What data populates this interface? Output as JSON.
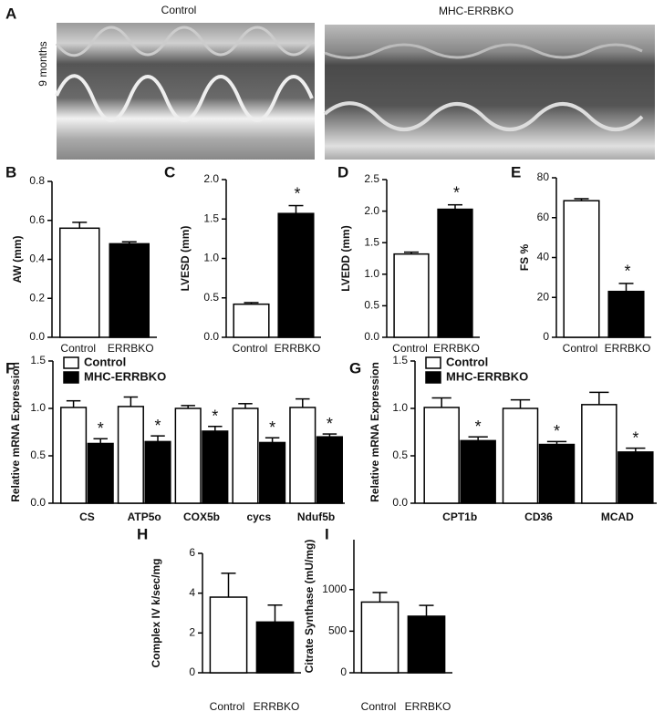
{
  "panel_a": {
    "label": "A",
    "ylabel": "9 months",
    "images": [
      {
        "title": "Control"
      },
      {
        "title": "MHC-ERRBKO"
      }
    ]
  },
  "chart_data": [
    {
      "type": "bar",
      "label": "B",
      "ylabel": "AW (mm)",
      "categories": [
        "Control",
        "ERRBKO"
      ],
      "values": [
        0.56,
        0.48
      ],
      "errors": [
        0.03,
        0.01
      ],
      "colors": [
        "#ffffff",
        "#000000"
      ],
      "ylim": [
        0,
        0.8
      ],
      "yticks": [
        {
          "value": 0,
          "label": "0.0"
        },
        0.2,
        0.4,
        0.6,
        0.8
      ]
    },
    {
      "type": "bar",
      "label": "C",
      "ylabel": "LVESD (mm)",
      "categories": [
        "Control",
        "ERRBKO"
      ],
      "values": [
        0.42,
        1.57
      ],
      "errors": [
        0.02,
        0.1
      ],
      "significance": [
        null,
        "*"
      ],
      "colors": [
        "#ffffff",
        "#000000"
      ],
      "ylim": [
        0,
        2
      ],
      "yticks": [
        {
          "value": 0,
          "label": "0.0"
        },
        0.5,
        {
          "value": 1,
          "label": "1.0"
        },
        1.5,
        {
          "value": 2,
          "label": "2.0"
        }
      ]
    },
    {
      "type": "bar",
      "label": "D",
      "ylabel": "LVEDD (mm)",
      "categories": [
        "Control",
        "ERRBKO"
      ],
      "values": [
        1.32,
        2.03
      ],
      "errors": [
        0.03,
        0.07
      ],
      "significance": [
        null,
        "*"
      ],
      "colors": [
        "#ffffff",
        "#000000"
      ],
      "ylim": [
        0,
        2.5
      ],
      "yticks": [
        {
          "value": 0,
          "label": "0.0"
        },
        0.5,
        {
          "value": 1,
          "label": "1.0"
        },
        1.5,
        {
          "value": 2,
          "label": "2.0"
        },
        2.5
      ]
    },
    {
      "type": "bar",
      "label": "E",
      "ylabel": "FS %",
      "categories": [
        "Control",
        "ERRBKO"
      ],
      "values": [
        68.5,
        23
      ],
      "errors": [
        1,
        4
      ],
      "significance": [
        null,
        "*"
      ],
      "colors": [
        "#ffffff",
        "#000000"
      ],
      "ylim": [
        0,
        80
      ],
      "yticks": [
        0,
        20,
        40,
        60,
        80
      ]
    },
    {
      "type": "bar",
      "label": "F",
      "ylabel": "Relative mRNA Expression",
      "categories": [
        "CS",
        "ATP5o",
        "COX5b",
        "cycs",
        "Nduf5b"
      ],
      "legend": "upper left",
      "series": [
        {
          "name": "Control",
          "color": "#ffffff",
          "values": [
            1.01,
            1.02,
            1.0,
            1.0,
            1.01
          ],
          "errors": [
            0.07,
            0.1,
            0.03,
            0.05,
            0.09
          ]
        },
        {
          "name": "MHC-ERRBKO",
          "color": "#000000",
          "values": [
            0.63,
            0.65,
            0.76,
            0.64,
            0.7
          ],
          "errors": [
            0.05,
            0.06,
            0.05,
            0.05,
            0.03
          ],
          "significance": [
            "*",
            "*",
            "*",
            "*",
            "*"
          ]
        }
      ],
      "ylim": [
        0,
        1.5
      ],
      "yticks": [
        {
          "value": 0,
          "label": "0.0"
        },
        0.5,
        {
          "value": 1,
          "label": "1.0"
        },
        1.5
      ]
    },
    {
      "type": "bar",
      "label": "G",
      "ylabel": "Relative mRNA Expression",
      "categories": [
        "CPT1b",
        "CD36",
        "MCAD"
      ],
      "legend": "upper left",
      "series": [
        {
          "name": "Control",
          "color": "#ffffff",
          "values": [
            1.01,
            1.0,
            1.04
          ],
          "errors": [
            0.1,
            0.09,
            0.13
          ]
        },
        {
          "name": "MHC-ERRBKO",
          "color": "#000000",
          "values": [
            0.66,
            0.62,
            0.54
          ],
          "errors": [
            0.04,
            0.03,
            0.04
          ],
          "significance": [
            "*",
            "*",
            "*"
          ]
        }
      ],
      "ylim": [
        0,
        1.5
      ],
      "yticks": [
        {
          "value": 0,
          "label": "0.0"
        },
        0.5,
        {
          "value": 1,
          "label": "1.0"
        },
        1.5
      ]
    },
    {
      "type": "bar",
      "label": "H",
      "ylabel": "Complex IV k/sec/mg",
      "categories": [
        "Control",
        "ERRBKO"
      ],
      "values": [
        3.8,
        2.55
      ],
      "errors": [
        1.2,
        0.85
      ],
      "colors": [
        "#ffffff",
        "#000000"
      ],
      "ylim": [
        0,
        6
      ],
      "yticks": [
        0,
        2,
        4,
        6
      ]
    },
    {
      "type": "bar",
      "label": "I",
      "ylabel": "Citrate Synthase (mU/mg)",
      "categories": [
        "Control",
        "ERRBKO"
      ],
      "values": [
        850,
        680
      ],
      "errors": [
        115,
        130
      ],
      "colors": [
        "#ffffff",
        "#000000"
      ],
      "ylim": [
        0,
        1600
      ],
      "yticks": [
        0,
        500,
        1000
      ]
    }
  ]
}
